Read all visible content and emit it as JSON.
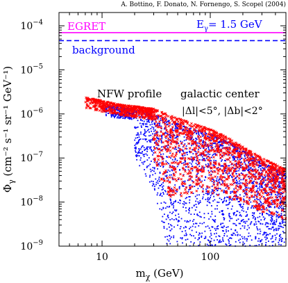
{
  "header": {
    "credit": "A. Bottino, F. Donato, N. Fornengo, S. Scopel (2004)"
  },
  "chart_data": {
    "type": "scatter",
    "x_scale": "log",
    "y_scale": "log",
    "xlim": [
      4,
      500
    ],
    "ylim": [
      1e-09,
      0.0002
    ],
    "xlabel": {
      "base": "m",
      "sub": "χ",
      "unit": " (GeV)"
    },
    "ylabel": {
      "pre": "Φ",
      "sub": "γ",
      "unit": " (cm⁻² s⁻¹ sr⁻¹ GeV⁻¹)"
    },
    "x_ticks": [
      {
        "value": 10,
        "label": "10"
      },
      {
        "value": 100,
        "label": "100"
      }
    ],
    "y_ticks": [
      {
        "value": 1e-09,
        "base": "10",
        "exp": "−9"
      },
      {
        "value": 1e-08,
        "base": "10",
        "exp": "−8"
      },
      {
        "value": 1e-07,
        "base": "10",
        "exp": "−7"
      },
      {
        "value": 1e-06,
        "base": "10",
        "exp": "−6"
      },
      {
        "value": 1e-05,
        "base": "10",
        "exp": "−5"
      },
      {
        "value": 0.0001,
        "base": "10",
        "exp": "−4"
      }
    ],
    "reference_lines": [
      {
        "name": "EGRET",
        "y": 7e-05,
        "color": "#ff00ff",
        "style": "solid"
      },
      {
        "name": "background",
        "y": 4.6e-05,
        "color": "#0000ff",
        "style": "dashed"
      }
    ],
    "annotations": {
      "energy": {
        "base": "E",
        "sub": "γ",
        "rest": "= 1.5 GeV"
      },
      "profile": "NFW profile",
      "region": "galactic center",
      "cuts": "|Δl|<5°,  |Δb|<2°"
    },
    "series": [
      {
        "color": "#ff0000",
        "marker": "cross",
        "envelope": [
          [
            7,
            2.4e-06
          ],
          [
            10,
            2e-06
          ],
          [
            15,
            1.6e-06
          ],
          [
            20,
            1.5e-06
          ],
          [
            30,
            1.3e-06
          ],
          [
            50,
            8e-07
          ],
          [
            70,
            6e-07
          ],
          [
            100,
            4.5e-07
          ],
          [
            150,
            2.8e-07
          ],
          [
            200,
            1.8e-07
          ],
          [
            300,
            1e-07
          ],
          [
            500,
            5.5e-08
          ]
        ],
        "lower_band": [
          [
            30,
            1e-07
          ],
          [
            40,
            1.4e-08
          ],
          [
            50,
            1.2e-08
          ],
          [
            70,
            1.5e-08
          ],
          [
            100,
            1.6e-08
          ],
          [
            150,
            1.2e-08
          ],
          [
            200,
            9e-09
          ],
          [
            300,
            6e-09
          ],
          [
            500,
            4e-09
          ]
        ]
      },
      {
        "color": "#0000ff",
        "marker": "dot",
        "envelope": [
          [
            10,
            1.6e-06
          ],
          [
            15,
            1.4e-06
          ],
          [
            20,
            1.3e-06
          ],
          [
            30,
            1e-06
          ],
          [
            50,
            6e-07
          ],
          [
            70,
            4.5e-07
          ],
          [
            100,
            3.5e-07
          ],
          [
            150,
            2.2e-07
          ],
          [
            200,
            1.5e-07
          ],
          [
            300,
            8e-08
          ],
          [
            500,
            4.5e-08
          ]
        ],
        "lower_band": [
          [
            20,
            1e-07
          ],
          [
            30,
            2e-08
          ],
          [
            40,
            1e-09
          ],
          [
            50,
            1e-09
          ],
          [
            70,
            1e-09
          ],
          [
            100,
            1e-09
          ],
          [
            200,
            1e-09
          ],
          [
            300,
            1e-09
          ],
          [
            500,
            1e-09
          ]
        ]
      }
    ]
  }
}
